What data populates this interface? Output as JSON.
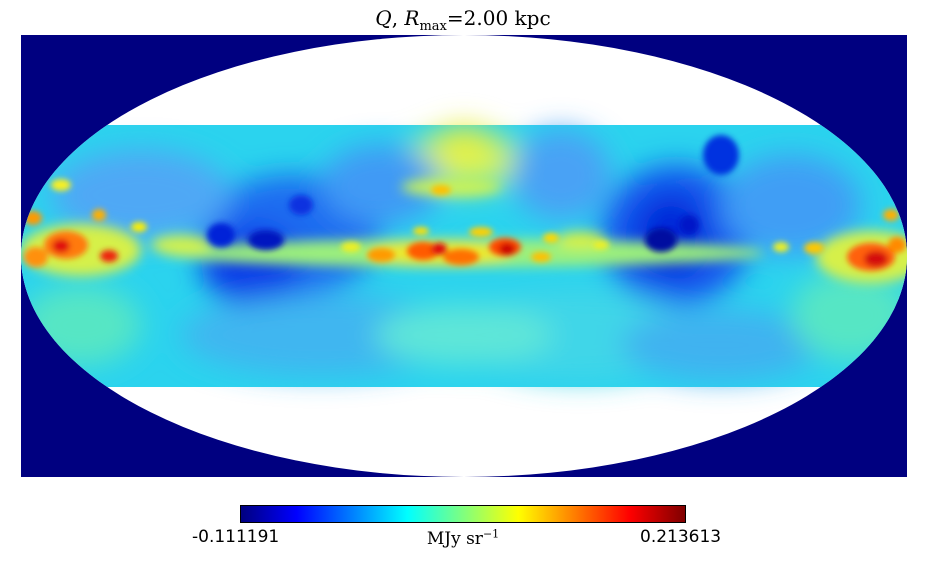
{
  "title": {
    "symbol": "Q",
    "separator": ", ",
    "r_symbol": "R",
    "r_subscript": "max",
    "r_value": "=2.00 kpc"
  },
  "map": {
    "projection": "mollweide",
    "background_color": "#000080",
    "unobserved_color": "#ffffff",
    "observed_latitude_band_deg": [
      -35,
      35
    ]
  },
  "colorbar": {
    "colormap": "jet",
    "min_label": "-0.111191",
    "max_label": "0.213613",
    "unit_main": "MJy sr",
    "unit_exponent": "−1",
    "stops": [
      "#00007f",
      "#0000ff",
      "#007fff",
      "#00ffff",
      "#7fff7f",
      "#ffff00",
      "#ff7f00",
      "#ff0000",
      "#7f0000"
    ]
  }
}
